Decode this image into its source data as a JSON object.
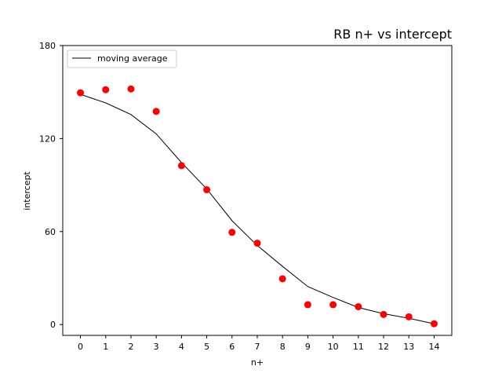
{
  "chart_data": {
    "type": "scatter",
    "title": "RB n+ vs intercept",
    "xlabel": "n+",
    "ylabel": "intercept",
    "x": [
      0,
      1,
      2,
      3,
      4,
      5,
      6,
      7,
      8,
      9,
      10,
      11,
      12,
      13,
      14
    ],
    "x_ticks": [
      "0",
      "1",
      "2",
      "3",
      "4",
      "5",
      "6",
      "7",
      "8",
      "9",
      "10",
      "11",
      "12",
      "13",
      "14"
    ],
    "y_ticks": [
      "0",
      "60",
      "120",
      "180"
    ],
    "xlim": [
      -0.7,
      14.7
    ],
    "ylim": [
      -7,
      180
    ],
    "grid": false,
    "legend_position": "top-left",
    "series": [
      {
        "kind": "scatter",
        "values": [
          149.5,
          151.5,
          152.0,
          137.5,
          102.5,
          87.0,
          59.5,
          52.5,
          29.5,
          12.8,
          12.8,
          11.5,
          6.5,
          5.0,
          0.5
        ],
        "color": "#ff0000"
      },
      {
        "kind": "line",
        "name": "moving average",
        "values": [
          148.5,
          143.0,
          135.5,
          123.0,
          104.5,
          87.5,
          67.0,
          51.0,
          37.5,
          24.5,
          17.5,
          11.0,
          7.0,
          4.0,
          0.5
        ],
        "color": "#000000"
      }
    ]
  }
}
